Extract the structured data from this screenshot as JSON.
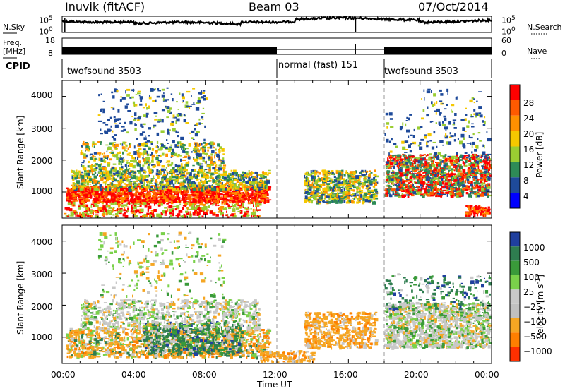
{
  "header": {
    "station": "Inuvik (fitACF)",
    "beam": "Beam 03",
    "date": "07/Oct/2014"
  },
  "sky_panel": {
    "left_label": "N.Sky",
    "right_label": "N.Search",
    "left_ticks": [
      "10^5",
      "10^0"
    ],
    "right_ticks": [
      "10^5",
      "10^0"
    ]
  },
  "freq_panel": {
    "left_label_1": "Freq.",
    "left_label_2": "[MHz]",
    "right_label": "Nave",
    "left_ticks": [
      "18",
      "8"
    ],
    "right_ticks": [
      "60",
      "0"
    ]
  },
  "cpid": {
    "label": "CPID",
    "segments": [
      {
        "name": "twofsound 3503",
        "start": 0,
        "end": 12
      },
      {
        "name": "normal (fast) 151",
        "start": 12,
        "end": 18
      },
      {
        "name": "twofsound 3503",
        "start": 18,
        "end": 24
      }
    ]
  },
  "chart_data": [
    {
      "type": "heatmap",
      "name": "power",
      "ylabel": "Slant Range [km]",
      "yticks": [
        "1000",
        "2000",
        "3000",
        "4000"
      ],
      "ylim": [
        180,
        4500
      ],
      "colorbar": {
        "label": "Power [dB]",
        "ticks": [
          "28",
          "24",
          "20",
          "16",
          "12",
          "8",
          "4"
        ],
        "colors": [
          "#ff0000",
          "#ff5a00",
          "#ff9000",
          "#f5c800",
          "#9acd32",
          "#2e8b57",
          "#1e4a9a",
          "#0000ff"
        ]
      }
    },
    {
      "type": "heatmap",
      "name": "velocity",
      "ylabel": "Slant Range [km]",
      "yticks": [
        "1000",
        "2000",
        "3000",
        "4000"
      ],
      "ylim": [
        180,
        4500
      ],
      "colorbar": {
        "label": "Velocity [m s^-1]",
        "ticks": [
          "1000",
          "500",
          "100",
          "25",
          "−25",
          "−100",
          "−500",
          "−1000"
        ],
        "colors": [
          "#1f3f9e",
          "#2e7d4f",
          "#3a9a3a",
          "#7ad14a",
          "#c8c8c8",
          "#c0c0c0",
          "#f5a623",
          "#ff7f00",
          "#ff3000"
        ]
      }
    }
  ],
  "xaxis": {
    "label": "Time UT",
    "ticks": [
      "00:00",
      "04:00",
      "08:00",
      "12:00",
      "16:00",
      "20:00",
      "00:00"
    ],
    "xlim": [
      0,
      24
    ]
  }
}
